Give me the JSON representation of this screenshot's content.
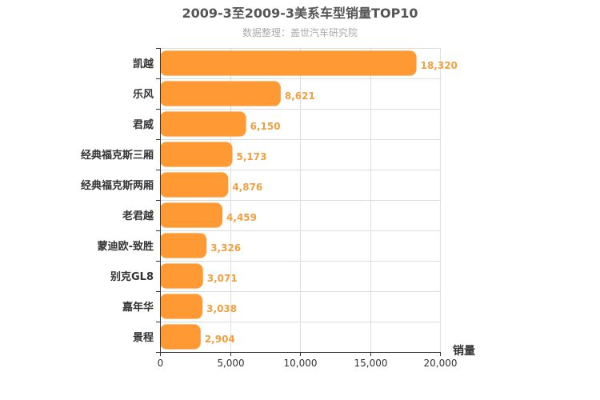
{
  "chart_data": {
    "type": "bar",
    "orientation": "horizontal",
    "title": "2009-3至2009-3美系车型销量TOP10",
    "subtitle": "数据整理：盖世汽车研究院",
    "categories": [
      "凯越",
      "乐风",
      "君威",
      "经典福克斯三厢",
      "经典福克斯两厢",
      "老君越",
      "蒙迪欧-致胜",
      "别克GL8",
      "嘉年华",
      "景程"
    ],
    "values": [
      18320,
      8621,
      6150,
      5173,
      4876,
      4459,
      3326,
      3071,
      3038,
      2904
    ],
    "value_labels": [
      "18,320",
      "8,621",
      "6,150",
      "5,173",
      "4,876",
      "4,459",
      "3,326",
      "3,071",
      "3,038",
      "2,904"
    ],
    "xlabel": "销量",
    "ylabel": "",
    "xlim": [
      0,
      20000
    ],
    "xticks": [
      0,
      5000,
      10000,
      15000,
      20000
    ],
    "xtick_labels": [
      "0",
      "5,000",
      "10,000",
      "15,000",
      "20,000"
    ],
    "grid": true,
    "bar_color": "#ff9933",
    "value_label_color": "#f0a040"
  }
}
